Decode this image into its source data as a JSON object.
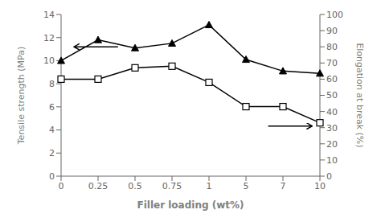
{
  "chart_data": {
    "type": "line",
    "categories": [
      "0",
      "0.25",
      "0.5",
      "0.75",
      "1",
      "5",
      "7",
      "10"
    ],
    "xlabel": "Filler loading (wt%)",
    "ylabel": "Tensile strength (MPa)",
    "y2label": "Elongation at break (%)",
    "ylim": [
      0,
      14
    ],
    "yticks": [
      0,
      2,
      4,
      6,
      8,
      10,
      12,
      14
    ],
    "y2lim": [
      0,
      100
    ],
    "y2ticks": [
      0,
      10,
      20,
      30,
      40,
      50,
      60,
      70,
      80,
      90,
      100
    ],
    "series": [
      {
        "color": "black",
        "marker": "triangle",
        "values": [
          10.0,
          11.8,
          11.1,
          11.5,
          13.1,
          10.1,
          9.1,
          8.9
        ]
      },
      {
        "color": "black",
        "marker": "square",
        "axis": "y2",
        "values": [
          60,
          60,
          67,
          68,
          58,
          43,
          43,
          33
        ]
      }
    ]
  }
}
